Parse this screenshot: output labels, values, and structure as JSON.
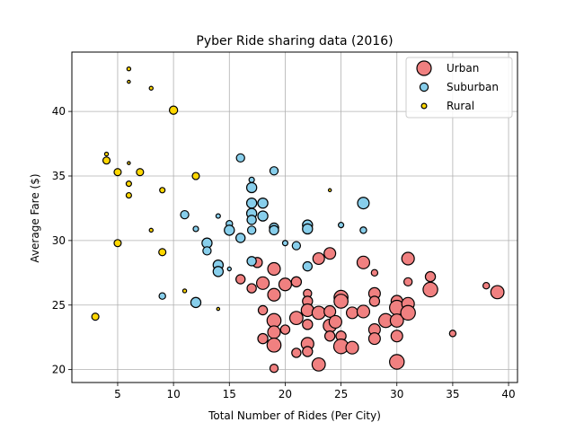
{
  "chart_data": {
    "type": "scatter",
    "title": "Pyber Ride sharing data (2016)",
    "xlabel": "Total Number of Rides (Per City)",
    "ylabel": "Average Fare ($)",
    "xlim": [
      0.9,
      40.8
    ],
    "ylim": [
      19.0,
      44.6
    ],
    "xticks": [
      5,
      10,
      15,
      20,
      25,
      30,
      35,
      40
    ],
    "yticks": [
      20,
      25,
      30,
      35,
      40
    ],
    "grid": true,
    "legend": "top-right",
    "series": [
      {
        "name": "Urban",
        "color": "#f08080",
        "points": [
          [
            16,
            27.0,
            36
          ],
          [
            17,
            26.3,
            36
          ],
          [
            17.5,
            28.3,
            44
          ],
          [
            18,
            26.7,
            72
          ],
          [
            18,
            24.6,
            36
          ],
          [
            18,
            22.4,
            44
          ],
          [
            19,
            27.8,
            72
          ],
          [
            19,
            25.8,
            72
          ],
          [
            19,
            23.8,
            90
          ],
          [
            19,
            22.9,
            72
          ],
          [
            19,
            21.9,
            90
          ],
          [
            19,
            20.1,
            28
          ],
          [
            20,
            26.6,
            72
          ],
          [
            20,
            23.1,
            36
          ],
          [
            21,
            26.8,
            44
          ],
          [
            21,
            24.0,
            80
          ],
          [
            21,
            21.3,
            36
          ],
          [
            22,
            25.9,
            28
          ],
          [
            22,
            25.3,
            44
          ],
          [
            22,
            24.6,
            72
          ],
          [
            22,
            23.5,
            44
          ],
          [
            22,
            22.0,
            72
          ],
          [
            22,
            21.4,
            44
          ],
          [
            23,
            28.6,
            60
          ],
          [
            23,
            24.4,
            80
          ],
          [
            23,
            20.4,
            80
          ],
          [
            24,
            29.0,
            60
          ],
          [
            24,
            24.5,
            60
          ],
          [
            24,
            23.4,
            80
          ],
          [
            24,
            22.6,
            44
          ],
          [
            24.5,
            23.7,
            72
          ],
          [
            25,
            25.6,
            90
          ],
          [
            25,
            25.3,
            90
          ],
          [
            25,
            22.6,
            44
          ],
          [
            25,
            21.8,
            100
          ],
          [
            26,
            24.4,
            60
          ],
          [
            26,
            21.7,
            72
          ],
          [
            27,
            28.3,
            72
          ],
          [
            27,
            24.5,
            72
          ],
          [
            28,
            27.5,
            16
          ],
          [
            28,
            25.9,
            60
          ],
          [
            28,
            25.3,
            44
          ],
          [
            28,
            23.1,
            60
          ],
          [
            28,
            22.4,
            60
          ],
          [
            29,
            23.8,
            90
          ],
          [
            30,
            25.3,
            60
          ],
          [
            30,
            24.8,
            100
          ],
          [
            30,
            23.8,
            80
          ],
          [
            30,
            22.6,
            60
          ],
          [
            30,
            20.6,
            100
          ],
          [
            31,
            28.6,
            72
          ],
          [
            31,
            26.8,
            28
          ],
          [
            31,
            25.1,
            72
          ],
          [
            31,
            24.4,
            100
          ],
          [
            33,
            27.2,
            44
          ],
          [
            33,
            26.2,
            100
          ],
          [
            35,
            22.8,
            16
          ],
          [
            38,
            26.5,
            16
          ],
          [
            39,
            26.0,
            80
          ]
        ]
      },
      {
        "name": "Suburban",
        "color": "#87ceeb",
        "points": [
          [
            9,
            25.7,
            16
          ],
          [
            11,
            32.0,
            28
          ],
          [
            12,
            30.9,
            10
          ],
          [
            12,
            25.2,
            44
          ],
          [
            13,
            29.8,
            44
          ],
          [
            13,
            29.2,
            28
          ],
          [
            14,
            28.1,
            44
          ],
          [
            14,
            27.6,
            44
          ],
          [
            14,
            31.9,
            6
          ],
          [
            15,
            31.3,
            16
          ],
          [
            15,
            30.8,
            44
          ],
          [
            15,
            27.8,
            4
          ],
          [
            16,
            36.4,
            28
          ],
          [
            16,
            30.2,
            36
          ],
          [
            17,
            34.7,
            10
          ],
          [
            17,
            34.1,
            44
          ],
          [
            17,
            32.9,
            44
          ],
          [
            17,
            32.1,
            44
          ],
          [
            17,
            31.6,
            36
          ],
          [
            17,
            30.8,
            28
          ],
          [
            17,
            28.4,
            36
          ],
          [
            18,
            32.9,
            44
          ],
          [
            18,
            31.9,
            44
          ],
          [
            19,
            35.4,
            28
          ],
          [
            19,
            31.0,
            36
          ],
          [
            19,
            30.8,
            36
          ],
          [
            20,
            29.8,
            10
          ],
          [
            21,
            29.6,
            28
          ],
          [
            22,
            31.2,
            44
          ],
          [
            22,
            30.9,
            44
          ],
          [
            22,
            28.0,
            36
          ],
          [
            25,
            31.2,
            10
          ],
          [
            27,
            32.9,
            60
          ],
          [
            27,
            30.8,
            16
          ]
        ]
      },
      {
        "name": "Rural",
        "color": "#ffd700",
        "points": [
          [
            3,
            24.1,
            20
          ],
          [
            4,
            36.7,
            4
          ],
          [
            4,
            36.2,
            20
          ],
          [
            5,
            35.3,
            20
          ],
          [
            5,
            29.8,
            20
          ],
          [
            6,
            43.3,
            4
          ],
          [
            6,
            42.3,
            2
          ],
          [
            6,
            36.0,
            2
          ],
          [
            6,
            34.4,
            10
          ],
          [
            6,
            33.5,
            10
          ],
          [
            7,
            35.3,
            20
          ],
          [
            8,
            41.8,
            4
          ],
          [
            8,
            30.8,
            4
          ],
          [
            9,
            33.9,
            10
          ],
          [
            9,
            29.1,
            20
          ],
          [
            10,
            40.1,
            28
          ],
          [
            11,
            26.1,
            4
          ],
          [
            12,
            35.0,
            20
          ],
          [
            14,
            24.7,
            2
          ],
          [
            24,
            33.9,
            2
          ]
        ]
      }
    ]
  }
}
